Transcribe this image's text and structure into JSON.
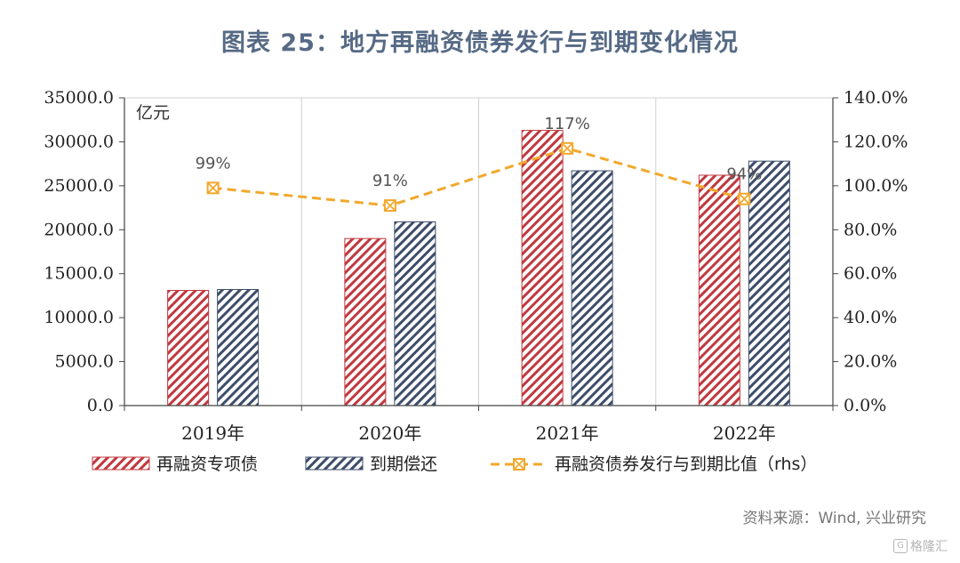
{
  "title": "图表 25：地方再融资债券发行与到期变化情况",
  "source": "资料来源：Wind, 兴业研究",
  "watermark": "格隆汇",
  "chart_data": {
    "type": "bar",
    "categories": [
      "2019年",
      "2020年",
      "2021年",
      "2022年"
    ],
    "left_axis": {
      "unit_label": "亿元",
      "ylim": [
        0,
        35000
      ],
      "ticks": [
        "0.0",
        "5000.0",
        "10000.0",
        "15000.0",
        "20000.0",
        "25000.0",
        "30000.0",
        "35000.0"
      ]
    },
    "right_axis": {
      "ylim": [
        0,
        140
      ],
      "ticks": [
        "0.0%",
        "20.0%",
        "40.0%",
        "60.0%",
        "80.0%",
        "100.0%",
        "120.0%",
        "140.0%"
      ]
    },
    "series": [
      {
        "name": "再融资专项债",
        "type": "bar",
        "axis": "left",
        "values": [
          13100,
          19000,
          31300,
          26200
        ],
        "color": "#c0393f",
        "pattern": "diagonal-hatch"
      },
      {
        "name": "到期偿还",
        "type": "bar",
        "axis": "left",
        "values": [
          13200,
          20900,
          26700,
          27800
        ],
        "color": "#3d4d6a",
        "pattern": "diagonal-hatch"
      },
      {
        "name": "再融资债券发行与到期比值（rhs）",
        "type": "line",
        "axis": "right",
        "values": [
          99,
          91,
          117,
          94
        ],
        "labels": [
          "99%",
          "91%",
          "117%",
          "94%"
        ],
        "color": "#f2a82c",
        "style": "dashed",
        "marker": "square-x"
      }
    ],
    "grid": "vertical",
    "legend_position": "bottom"
  }
}
